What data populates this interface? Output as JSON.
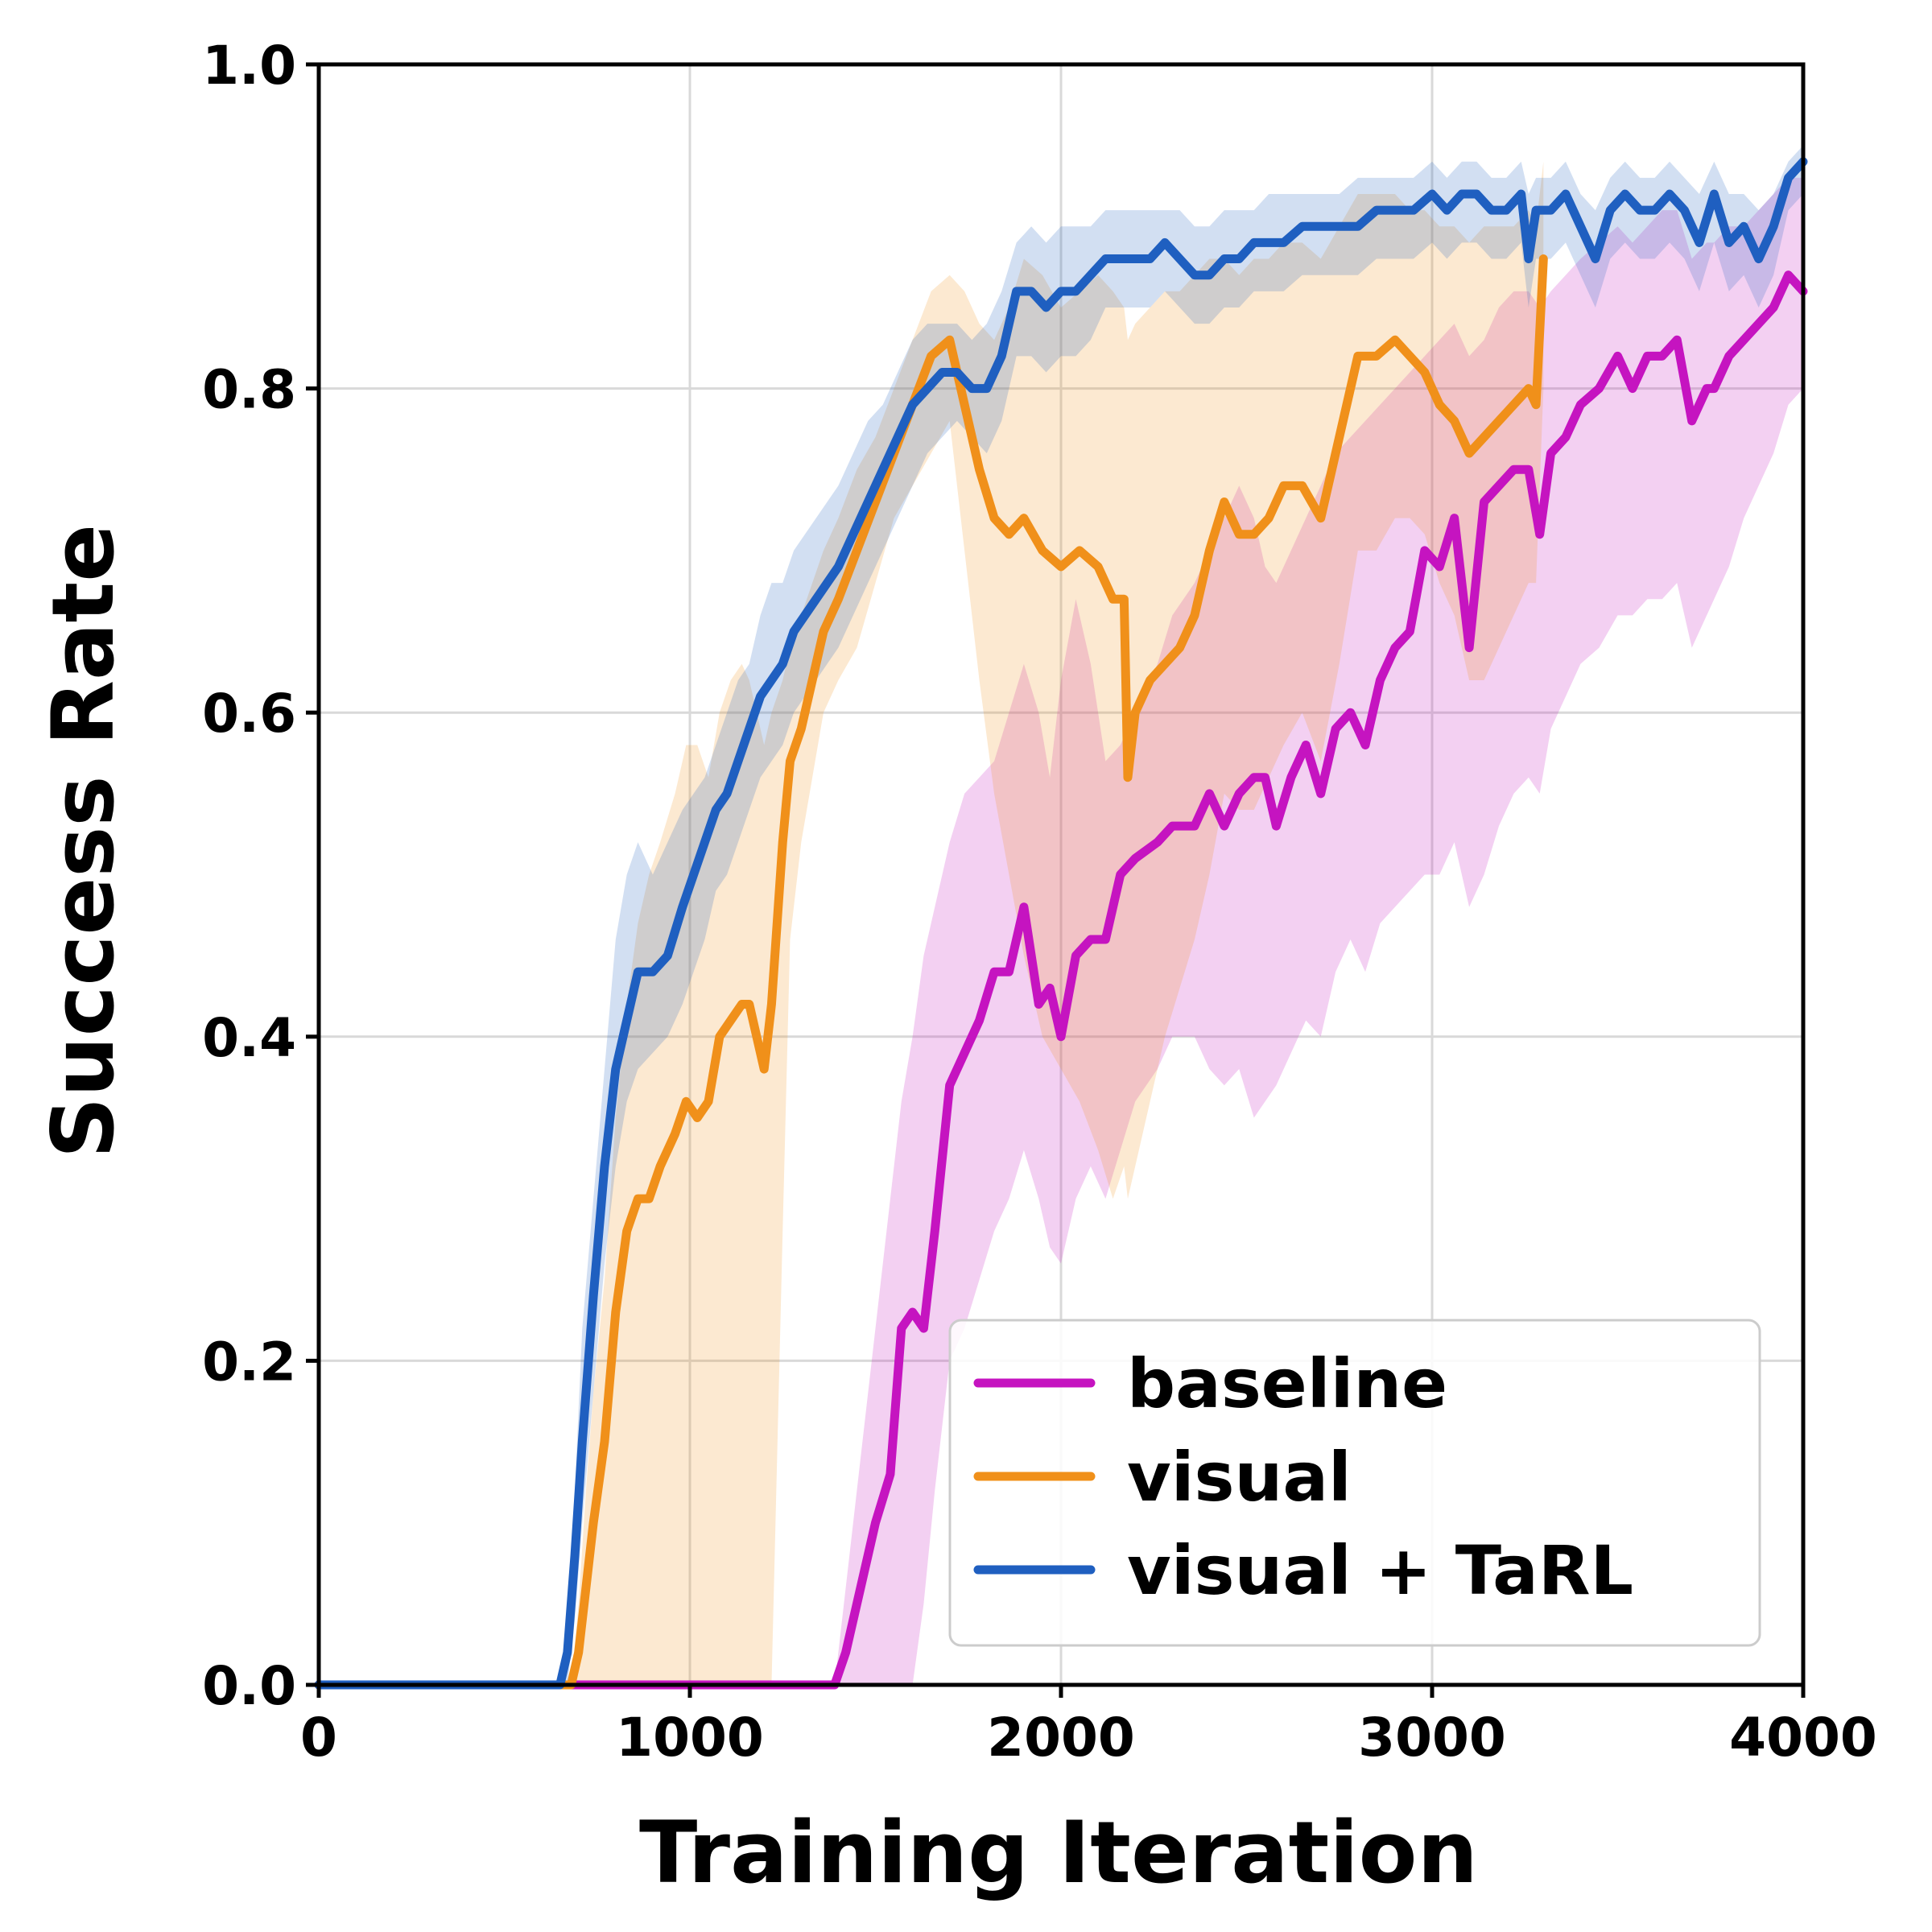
{
  "chart_data": {
    "type": "line",
    "title": "",
    "xlabel": "Training Iteration",
    "ylabel": "Success Rate",
    "xlim": [
      0,
      4000
    ],
    "ylim": [
      0,
      1.0
    ],
    "xticks": [
      0,
      1000,
      2000,
      3000,
      4000
    ],
    "xtick_labels": [
      "0",
      "1000",
      "2000",
      "3000",
      "4000"
    ],
    "yticks": [
      0,
      0.2,
      0.4,
      0.6,
      0.8,
      1.0
    ],
    "ytick_labels": [
      "0.0",
      "0.2",
      "0.4",
      "0.6",
      "0.8",
      "1.0"
    ],
    "grid": true,
    "legend_position": "bottom-right",
    "series": [
      {
        "name": "baseline",
        "color": "#c514c0",
        "x": [
          0,
          1390,
          1420,
          1460,
          1500,
          1540,
          1570,
          1600,
          1630,
          1660,
          1700,
          1740,
          1780,
          1820,
          1860,
          1900,
          1940,
          1970,
          2000,
          2040,
          2080,
          2120,
          2160,
          2200,
          2260,
          2300,
          2360,
          2400,
          2440,
          2480,
          2520,
          2550,
          2580,
          2620,
          2660,
          2700,
          2740,
          2780,
          2820,
          2860,
          2900,
          2940,
          2980,
          3020,
          3060,
          3100,
          3140,
          3180,
          3220,
          3260,
          3290,
          3320,
          3360,
          3400,
          3450,
          3500,
          3540,
          3580,
          3620,
          3660,
          3700,
          3740,
          3760,
          3800,
          3840,
          3880,
          3920,
          3960,
          4000
        ],
        "y": [
          0,
          0,
          0.02,
          0.06,
          0.1,
          0.13,
          0.22,
          0.23,
          0.22,
          0.28,
          0.37,
          0.39,
          0.41,
          0.44,
          0.44,
          0.48,
          0.42,
          0.43,
          0.4,
          0.45,
          0.46,
          0.46,
          0.5,
          0.51,
          0.52,
          0.53,
          0.53,
          0.55,
          0.53,
          0.55,
          0.56,
          0.56,
          0.53,
          0.56,
          0.58,
          0.55,
          0.59,
          0.6,
          0.58,
          0.62,
          0.64,
          0.65,
          0.7,
          0.69,
          0.72,
          0.64,
          0.73,
          0.74,
          0.75,
          0.75,
          0.71,
          0.76,
          0.77,
          0.79,
          0.8,
          0.82,
          0.8,
          0.82,
          0.82,
          0.83,
          0.78,
          0.8,
          0.8,
          0.82,
          0.83,
          0.84,
          0.85,
          0.87,
          0.86
        ],
        "upper": [
          0,
          0,
          0.06,
          0.14,
          0.22,
          0.3,
          0.36,
          0.4,
          0.45,
          0.48,
          0.52,
          0.55,
          0.56,
          0.57,
          0.6,
          0.63,
          0.6,
          0.56,
          0.62,
          0.67,
          0.63,
          0.57,
          0.58,
          0.6,
          0.63,
          0.66,
          0.68,
          0.7,
          0.72,
          0.74,
          0.72,
          0.69,
          0.68,
          0.7,
          0.72,
          0.74,
          0.76,
          0.77,
          0.78,
          0.79,
          0.8,
          0.81,
          0.82,
          0.83,
          0.84,
          0.82,
          0.83,
          0.85,
          0.86,
          0.86,
          0.85,
          0.86,
          0.87,
          0.88,
          0.89,
          0.9,
          0.89,
          0.9,
          0.91,
          0.91,
          0.88,
          0.89,
          0.89,
          0.9,
          0.9,
          0.91,
          0.92,
          0.93,
          0.93
        ],
        "lower": [
          0,
          0,
          0,
          0,
          0,
          0,
          0,
          0,
          0.05,
          0.12,
          0.2,
          0.22,
          0.25,
          0.28,
          0.3,
          0.33,
          0.3,
          0.27,
          0.26,
          0.3,
          0.32,
          0.3,
          0.33,
          0.36,
          0.38,
          0.4,
          0.4,
          0.38,
          0.37,
          0.38,
          0.35,
          0.36,
          0.37,
          0.39,
          0.41,
          0.4,
          0.44,
          0.46,
          0.44,
          0.47,
          0.48,
          0.49,
          0.5,
          0.5,
          0.52,
          0.48,
          0.5,
          0.53,
          0.55,
          0.56,
          0.55,
          0.59,
          0.61,
          0.63,
          0.64,
          0.66,
          0.66,
          0.67,
          0.67,
          0.68,
          0.64,
          0.66,
          0.67,
          0.69,
          0.72,
          0.74,
          0.76,
          0.79,
          0.8
        ]
      },
      {
        "name": "visual",
        "color": "#f0901a",
        "x": [
          0,
          680,
          700,
          720,
          740,
          770,
          800,
          830,
          860,
          890,
          920,
          960,
          990,
          1020,
          1050,
          1080,
          1110,
          1140,
          1160,
          1180,
          1200,
          1220,
          1250,
          1270,
          1300,
          1330,
          1360,
          1400,
          1450,
          1500,
          1550,
          1600,
          1650,
          1700,
          1740,
          1780,
          1820,
          1860,
          1900,
          1950,
          2000,
          2050,
          2100,
          2140,
          2170,
          2180,
          2200,
          2240,
          2280,
          2320,
          2360,
          2400,
          2440,
          2480,
          2520,
          2560,
          2600,
          2650,
          2700,
          2750,
          2800,
          2850,
          2900,
          2940,
          2980,
          3020,
          3060,
          3100,
          3140,
          3180,
          3220,
          3260,
          3280,
          3300
        ],
        "y": [
          0,
          0,
          0.02,
          0.06,
          0.1,
          0.15,
          0.23,
          0.28,
          0.3,
          0.3,
          0.32,
          0.34,
          0.36,
          0.35,
          0.36,
          0.4,
          0.41,
          0.42,
          0.42,
          0.4,
          0.38,
          0.42,
          0.52,
          0.57,
          0.59,
          0.62,
          0.65,
          0.67,
          0.7,
          0.73,
          0.76,
          0.79,
          0.82,
          0.83,
          0.79,
          0.75,
          0.72,
          0.71,
          0.72,
          0.7,
          0.69,
          0.7,
          0.69,
          0.67,
          0.67,
          0.56,
          0.6,
          0.62,
          0.63,
          0.64,
          0.66,
          0.7,
          0.73,
          0.71,
          0.71,
          0.72,
          0.74,
          0.74,
          0.72,
          0.77,
          0.82,
          0.82,
          0.83,
          0.82,
          0.81,
          0.79,
          0.78,
          0.76,
          0.77,
          0.78,
          0.79,
          0.8,
          0.79,
          0.88
        ],
        "upper": [
          0,
          0,
          0.05,
          0.12,
          0.18,
          0.25,
          0.35,
          0.42,
          0.47,
          0.5,
          0.52,
          0.55,
          0.58,
          0.58,
          0.56,
          0.6,
          0.62,
          0.63,
          0.62,
          0.6,
          0.58,
          0.6,
          0.62,
          0.64,
          0.66,
          0.68,
          0.7,
          0.72,
          0.75,
          0.77,
          0.8,
          0.83,
          0.86,
          0.87,
          0.86,
          0.84,
          0.83,
          0.85,
          0.88,
          0.87,
          0.85,
          0.86,
          0.87,
          0.86,
          0.85,
          0.83,
          0.84,
          0.85,
          0.86,
          0.86,
          0.87,
          0.88,
          0.88,
          0.87,
          0.88,
          0.88,
          0.89,
          0.89,
          0.88,
          0.9,
          0.92,
          0.92,
          0.92,
          0.91,
          0.91,
          0.9,
          0.9,
          0.89,
          0.9,
          0.9,
          0.9,
          0.91,
          0.9,
          0.94
        ],
        "lower": [
          0,
          0,
          0,
          0,
          0,
          0,
          0,
          0,
          0,
          0,
          0,
          0,
          0,
          0,
          0,
          0,
          0,
          0,
          0,
          0,
          0,
          0,
          0.28,
          0.46,
          0.52,
          0.56,
          0.6,
          0.62,
          0.64,
          0.68,
          0.72,
          0.74,
          0.76,
          0.78,
          0.7,
          0.62,
          0.55,
          0.5,
          0.45,
          0.4,
          0.38,
          0.36,
          0.33,
          0.3,
          0.32,
          0.3,
          0.32,
          0.36,
          0.4,
          0.43,
          0.46,
          0.5,
          0.55,
          0.54,
          0.54,
          0.56,
          0.58,
          0.6,
          0.57,
          0.63,
          0.7,
          0.7,
          0.72,
          0.72,
          0.71,
          0.68,
          0.66,
          0.62,
          0.62,
          0.64,
          0.66,
          0.68,
          0.68,
          0.8
        ]
      },
      {
        "name": "visual + TaRL",
        "color": "#1f5fc0",
        "x": [
          0,
          650,
          670,
          690,
          710,
          740,
          770,
          800,
          830,
          860,
          900,
          940,
          980,
          1010,
          1040,
          1070,
          1100,
          1130,
          1160,
          1190,
          1220,
          1250,
          1280,
          1310,
          1340,
          1370,
          1400,
          1440,
          1480,
          1520,
          1560,
          1600,
          1640,
          1680,
          1720,
          1760,
          1800,
          1840,
          1880,
          1920,
          1960,
          2000,
          2040,
          2080,
          2120,
          2160,
          2200,
          2240,
          2280,
          2320,
          2360,
          2400,
          2440,
          2480,
          2520,
          2560,
          2600,
          2650,
          2700,
          2750,
          2800,
          2850,
          2900,
          2950,
          3000,
          3040,
          3080,
          3120,
          3160,
          3200,
          3240,
          3260,
          3280,
          3320,
          3360,
          3400,
          3440,
          3480,
          3520,
          3560,
          3600,
          3640,
          3680,
          3720,
          3760,
          3800,
          3840,
          3880,
          3920,
          3960,
          4000
        ],
        "y": [
          0,
          0,
          0.02,
          0.08,
          0.15,
          0.24,
          0.32,
          0.38,
          0.41,
          0.44,
          0.44,
          0.45,
          0.48,
          0.5,
          0.52,
          0.54,
          0.55,
          0.57,
          0.59,
          0.61,
          0.62,
          0.63,
          0.65,
          0.66,
          0.67,
          0.68,
          0.69,
          0.71,
          0.73,
          0.75,
          0.77,
          0.79,
          0.8,
          0.81,
          0.81,
          0.8,
          0.8,
          0.82,
          0.86,
          0.86,
          0.85,
          0.86,
          0.86,
          0.87,
          0.88,
          0.88,
          0.88,
          0.88,
          0.89,
          0.88,
          0.87,
          0.87,
          0.88,
          0.88,
          0.89,
          0.89,
          0.89,
          0.9,
          0.9,
          0.9,
          0.9,
          0.91,
          0.91,
          0.91,
          0.92,
          0.91,
          0.92,
          0.92,
          0.91,
          0.91,
          0.92,
          0.88,
          0.91,
          0.91,
          0.92,
          0.9,
          0.88,
          0.91,
          0.92,
          0.91,
          0.91,
          0.92,
          0.91,
          0.89,
          0.92,
          0.89,
          0.9,
          0.88,
          0.9,
          0.93,
          0.94
        ],
        "upper": [
          0,
          0,
          0.04,
          0.12,
          0.22,
          0.3,
          0.38,
          0.46,
          0.5,
          0.52,
          0.5,
          0.52,
          0.54,
          0.55,
          0.56,
          0.58,
          0.6,
          0.62,
          0.63,
          0.66,
          0.68,
          0.68,
          0.7,
          0.71,
          0.72,
          0.73,
          0.74,
          0.76,
          0.78,
          0.79,
          0.81,
          0.83,
          0.84,
          0.84,
          0.84,
          0.83,
          0.84,
          0.86,
          0.89,
          0.9,
          0.89,
          0.9,
          0.9,
          0.9,
          0.91,
          0.91,
          0.91,
          0.91,
          0.91,
          0.91,
          0.9,
          0.9,
          0.91,
          0.91,
          0.91,
          0.92,
          0.92,
          0.92,
          0.92,
          0.92,
          0.93,
          0.93,
          0.93,
          0.93,
          0.94,
          0.93,
          0.94,
          0.94,
          0.93,
          0.93,
          0.94,
          0.92,
          0.93,
          0.93,
          0.94,
          0.92,
          0.91,
          0.93,
          0.94,
          0.93,
          0.93,
          0.94,
          0.93,
          0.92,
          0.94,
          0.92,
          0.92,
          0.91,
          0.92,
          0.94,
          0.95
        ],
        "lower": [
          0,
          0,
          0,
          0.04,
          0.1,
          0.18,
          0.26,
          0.32,
          0.36,
          0.38,
          0.39,
          0.4,
          0.42,
          0.44,
          0.46,
          0.49,
          0.5,
          0.52,
          0.54,
          0.56,
          0.57,
          0.58,
          0.6,
          0.61,
          0.62,
          0.63,
          0.64,
          0.66,
          0.68,
          0.7,
          0.72,
          0.74,
          0.76,
          0.77,
          0.78,
          0.77,
          0.76,
          0.78,
          0.82,
          0.82,
          0.81,
          0.82,
          0.82,
          0.83,
          0.85,
          0.85,
          0.85,
          0.85,
          0.86,
          0.85,
          0.84,
          0.84,
          0.85,
          0.85,
          0.86,
          0.86,
          0.86,
          0.87,
          0.87,
          0.87,
          0.87,
          0.88,
          0.88,
          0.88,
          0.89,
          0.88,
          0.89,
          0.89,
          0.88,
          0.88,
          0.89,
          0.85,
          0.88,
          0.88,
          0.89,
          0.87,
          0.85,
          0.88,
          0.89,
          0.88,
          0.88,
          0.89,
          0.88,
          0.86,
          0.89,
          0.86,
          0.87,
          0.85,
          0.87,
          0.91,
          0.92
        ]
      }
    ]
  }
}
